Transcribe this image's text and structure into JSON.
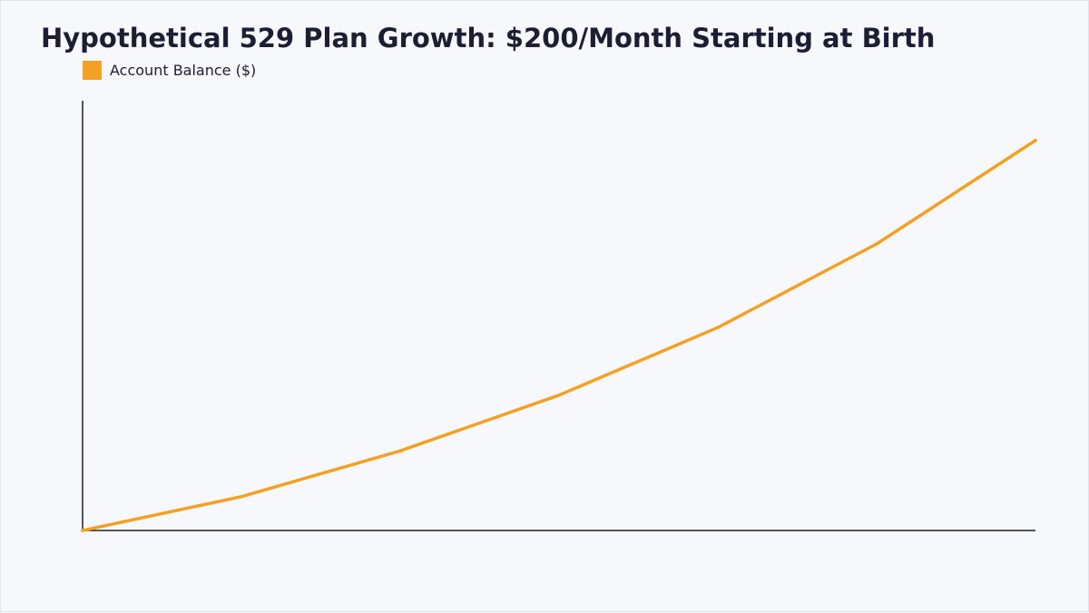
{
  "chart_data": {
    "type": "line",
    "title": "Hypothetical 529 Plan Growth: $200/Month Starting at Birth",
    "xlabel": "",
    "ylabel": "",
    "x": [
      0,
      3,
      6,
      9,
      12,
      15,
      18
    ],
    "series": [
      {
        "name": "Account Balance ($)",
        "values": [
          0,
          8500,
          20000,
          34000,
          51000,
          72000,
          98000
        ],
        "color": "#f5a023"
      }
    ],
    "xlim": [
      0,
      18
    ],
    "ylim": [
      0,
      108000
    ],
    "grid": false,
    "legend": "top-left",
    "tick_labels_shown": false
  }
}
